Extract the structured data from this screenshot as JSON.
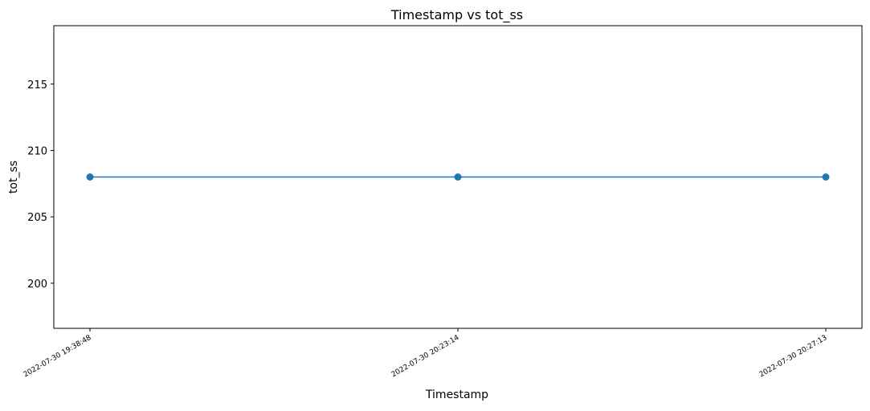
{
  "chart_data": {
    "type": "line",
    "title": "Timestamp vs tot_ss",
    "xlabel": "Timestamp",
    "ylabel": "tot_ss",
    "x": [
      "2022-07-30 19:38:48",
      "2022-07-30 20:23:14",
      "2022-07-30 20:27:13"
    ],
    "series": [
      {
        "values": [
          208,
          208,
          208
        ],
        "color": "#1f77b4",
        "marker": "circle"
      }
    ],
    "x_axis_type": "categorical",
    "ylim": [
      196.6,
      219.4
    ],
    "yticks": [
      200,
      205,
      210,
      215
    ],
    "ytick_labels": [
      "200",
      "205",
      "210",
      "215"
    ],
    "grid": false,
    "legend": "none"
  }
}
